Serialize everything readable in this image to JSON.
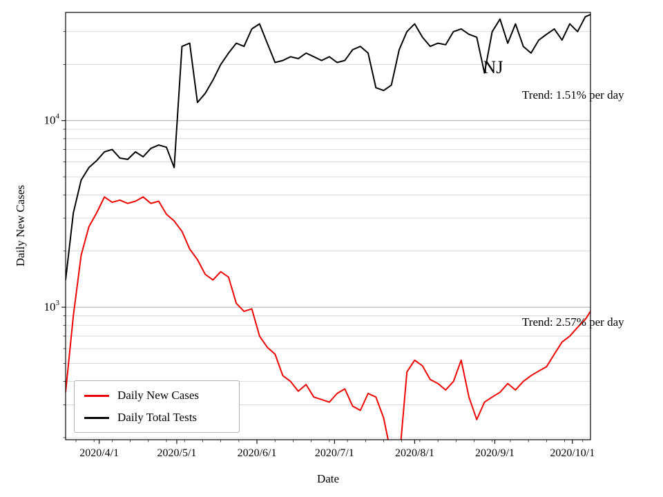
{
  "figure": {
    "background_color": "#ffffff"
  },
  "chart_data": {
    "type": "line",
    "yscale": "log",
    "grid": {
      "orientation": "horizontal",
      "minor_color": "#d0d0d0",
      "major_color": "#a9a9a9"
    },
    "legend_position": "lower-left",
    "xlabel": "Date",
    "ylabel": "Daily New Cases",
    "xlim": [
      "2020-03-19",
      "2020-10-08"
    ],
    "ylim": [
      195,
      38000
    ],
    "x_tick_labels": [
      {
        "label": "2020/4/1",
        "date": "2020-04-01"
      },
      {
        "label": "2020/5/1",
        "date": "2020-05-01"
      },
      {
        "label": "2020/6/1",
        "date": "2020-06-01"
      },
      {
        "label": "2020/7/1",
        "date": "2020-07-01"
      },
      {
        "label": "2020/8/1",
        "date": "2020-08-01"
      },
      {
        "label": "2020/9/1",
        "date": "2020-09-01"
      },
      {
        "label": "2020/10/1",
        "date": "2020-10-01"
      }
    ],
    "y_tick_labels": [
      {
        "mantissa": "10",
        "exponent": "3",
        "value": 1000
      },
      {
        "mantissa": "10",
        "exponent": "4",
        "value": 10000
      }
    ],
    "x": [
      "2020-03-19",
      "2020-03-22",
      "2020-03-25",
      "2020-03-28",
      "2020-03-31",
      "2020-04-03",
      "2020-04-06",
      "2020-04-09",
      "2020-04-12",
      "2020-04-15",
      "2020-04-18",
      "2020-04-21",
      "2020-04-24",
      "2020-04-27",
      "2020-04-30",
      "2020-05-03",
      "2020-05-06",
      "2020-05-09",
      "2020-05-12",
      "2020-05-15",
      "2020-05-18",
      "2020-05-21",
      "2020-05-24",
      "2020-05-27",
      "2020-05-30",
      "2020-06-02",
      "2020-06-05",
      "2020-06-08",
      "2020-06-11",
      "2020-06-14",
      "2020-06-17",
      "2020-06-20",
      "2020-06-23",
      "2020-06-26",
      "2020-06-29",
      "2020-07-02",
      "2020-07-05",
      "2020-07-08",
      "2020-07-11",
      "2020-07-14",
      "2020-07-17",
      "2020-07-20",
      "2020-07-23",
      "2020-07-26",
      "2020-07-29",
      "2020-08-01",
      "2020-08-04",
      "2020-08-07",
      "2020-08-10",
      "2020-08-13",
      "2020-08-16",
      "2020-08-19",
      "2020-08-22",
      "2020-08-25",
      "2020-08-28",
      "2020-08-31",
      "2020-09-03",
      "2020-09-06",
      "2020-09-09",
      "2020-09-12",
      "2020-09-15",
      "2020-09-18",
      "2020-09-21",
      "2020-09-24",
      "2020-09-27",
      "2020-09-30",
      "2020-10-03",
      "2020-10-06",
      "2020-10-08"
    ],
    "series": [
      {
        "name": "Daily New Cases",
        "color": "#ee0000",
        "values": [
          350,
          900,
          1900,
          2700,
          3200,
          3900,
          3650,
          3750,
          3600,
          3700,
          3900,
          3600,
          3700,
          3150,
          2900,
          2550,
          2050,
          1800,
          1500,
          1400,
          1550,
          1450,
          1050,
          950,
          980,
          700,
          610,
          560,
          430,
          400,
          355,
          385,
          330,
          320,
          310,
          345,
          365,
          295,
          280,
          345,
          330,
          255,
          160,
          150,
          450,
          520,
          485,
          410,
          390,
          360,
          400,
          520,
          330,
          250,
          310,
          330,
          350,
          390,
          360,
          400,
          430,
          455,
          480,
          560,
          650,
          700,
          780,
          860,
          950
        ]
      },
      {
        "name": "Daily Total Tests",
        "color": "#000000",
        "values": [
          1400,
          3200,
          4800,
          5600,
          6100,
          6800,
          7000,
          6300,
          6200,
          6800,
          6400,
          7100,
          7400,
          7200,
          5600,
          25000,
          26000,
          12500,
          14000,
          16500,
          20000,
          23000,
          26000,
          25000,
          31000,
          33000,
          26000,
          20500,
          21000,
          22000,
          21500,
          23000,
          22000,
          21000,
          22000,
          20500,
          21000,
          24000,
          25000,
          23000,
          15000,
          14500,
          15500,
          24000,
          30000,
          33000,
          28000,
          25000,
          26000,
          25500,
          30000,
          31000,
          29000,
          28000,
          18000,
          30000,
          35000,
          26000,
          33000,
          25000,
          23000,
          27000,
          29000,
          31000,
          27000,
          33000,
          30000,
          36000,
          37000
        ]
      }
    ],
    "annotations": [
      {
        "text": "NJ",
        "x": "2020-08-27",
        "y": 19000
      },
      {
        "text": "Trend: 1.51% per day",
        "x": "2020-10-05",
        "y": 14000
      },
      {
        "text": "Trend: 2.57% per day",
        "x": "2020-10-05",
        "y": 850
      }
    ]
  }
}
